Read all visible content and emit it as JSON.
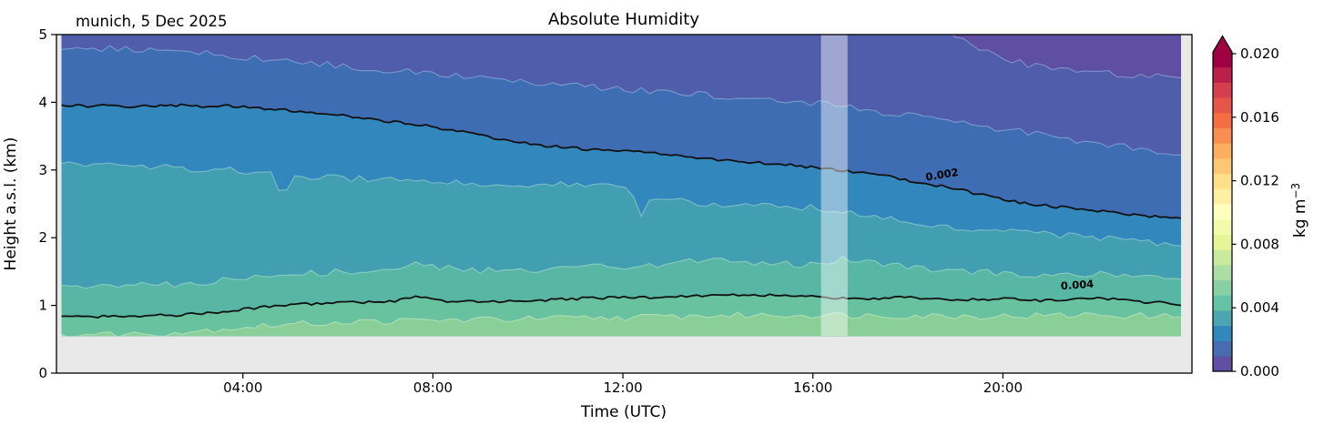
{
  "figure": {
    "title": "Absolute Humidity",
    "annotation": "munich, 5 Dec 2025"
  },
  "axes": {
    "xlabel": "Time (UTC)",
    "ylabel": "Height a.s.l. (km)",
    "x_ticks": [
      {
        "hour": 4,
        "label": "04:00"
      },
      {
        "hour": 8,
        "label": "08:00"
      },
      {
        "hour": 12,
        "label": "12:00"
      },
      {
        "hour": 16,
        "label": "16:00"
      },
      {
        "hour": 20,
        "label": "20:00"
      }
    ],
    "y_ticks": [
      {
        "km": 0,
        "label": "0"
      },
      {
        "km": 1,
        "label": "1"
      },
      {
        "km": 2,
        "label": "2"
      },
      {
        "km": 3,
        "label": "3"
      },
      {
        "km": 4,
        "label": "4"
      },
      {
        "km": 5,
        "label": "5"
      }
    ]
  },
  "colorbar": {
    "unit_base": "kg m",
    "unit_exp": "−3",
    "extend": "max",
    "ticks": [
      {
        "value": 0.0,
        "label": "0.000"
      },
      {
        "value": 0.004,
        "label": "0.004"
      },
      {
        "value": 0.008,
        "label": "0.008"
      },
      {
        "value": 0.012,
        "label": "0.012"
      },
      {
        "value": 0.016,
        "label": "0.016"
      },
      {
        "value": 0.02,
        "label": "0.020"
      }
    ],
    "colormap_name": "Spectral_r",
    "colormap_stops": [
      {
        "t": 0.0,
        "c": "#5e4fa2"
      },
      {
        "t": 0.1,
        "c": "#3288bd"
      },
      {
        "t": 0.2,
        "c": "#66c2a5"
      },
      {
        "t": 0.3,
        "c": "#abdda4"
      },
      {
        "t": 0.4,
        "c": "#e6f598"
      },
      {
        "t": 0.5,
        "c": "#ffffbf"
      },
      {
        "t": 0.6,
        "c": "#fee08b"
      },
      {
        "t": 0.7,
        "c": "#fdae61"
      },
      {
        "t": 0.8,
        "c": "#f46d43"
      },
      {
        "t": 0.9,
        "c": "#d53e4f"
      },
      {
        "t": 1.0,
        "c": "#9e0142"
      }
    ],
    "value_min": 0.0,
    "value_max": 0.02,
    "n_segments": 21
  },
  "chart_data": {
    "type": "filled_contour",
    "title": "Absolute Humidity",
    "xlabel": "Time (UTC)",
    "ylabel": "Height a.s.l. (km)",
    "x_range_hours": [
      0.18,
      23.75
    ],
    "y_range_km": [
      0,
      5
    ],
    "surface_km": 0.55,
    "units": "kg m^-3",
    "highlight_band_hours": [
      16.17,
      16.73
    ],
    "bands": [
      {
        "level_range": "0.0000-0.0005",
        "color": "#5e4fa2",
        "upper_boundary": null
      },
      {
        "level_range": "0.0005-0.0010",
        "color": "#4f5dab",
        "upper_boundary": [
          [
            0.18,
            5.1
          ],
          [
            18.7,
            5.1
          ],
          [
            19.2,
            4.9
          ],
          [
            19.6,
            4.76
          ],
          [
            20,
            4.66
          ],
          [
            20.5,
            4.56
          ],
          [
            21,
            4.49
          ],
          [
            21.5,
            4.45
          ],
          [
            22,
            4.43
          ],
          [
            22.7,
            4.41
          ],
          [
            23.75,
            4.36
          ]
        ]
      },
      {
        "level_range": "0.0010-0.0020",
        "color": "#3f6db4",
        "upper_boundary": [
          [
            0.18,
            4.78
          ],
          [
            1,
            4.8
          ],
          [
            2,
            4.77
          ],
          [
            3,
            4.73
          ],
          [
            4,
            4.67
          ],
          [
            5,
            4.6
          ],
          [
            6,
            4.54
          ],
          [
            7,
            4.48
          ],
          [
            8,
            4.42
          ],
          [
            9,
            4.37
          ],
          [
            10,
            4.31
          ],
          [
            11,
            4.25
          ],
          [
            12,
            4.19
          ],
          [
            13,
            4.14
          ],
          [
            14,
            4.09
          ],
          [
            15,
            4.04
          ],
          [
            16,
            3.99
          ],
          [
            17,
            3.9
          ],
          [
            18,
            3.8
          ],
          [
            19,
            3.7
          ],
          [
            20,
            3.6
          ],
          [
            21,
            3.5
          ],
          [
            22,
            3.4
          ],
          [
            23,
            3.3
          ],
          [
            23.75,
            3.22
          ]
        ]
      },
      {
        "level_range": "0.0020-0.0025",
        "color": "#3287bc",
        "upper_boundary": [
          [
            0.18,
            3.96
          ],
          [
            0.7,
            3.94
          ],
          [
            1.2,
            3.96
          ],
          [
            1.7,
            3.93
          ],
          [
            2.2,
            3.95
          ],
          [
            2.7,
            3.96
          ],
          [
            3.2,
            3.94
          ],
          [
            3.7,
            3.95
          ],
          [
            4.2,
            3.92
          ],
          [
            4.7,
            3.9
          ],
          [
            5.2,
            3.87
          ],
          [
            5.7,
            3.83
          ],
          [
            6.2,
            3.79
          ],
          [
            6.7,
            3.75
          ],
          [
            7.2,
            3.71
          ],
          [
            7.7,
            3.67
          ],
          [
            8.2,
            3.61
          ],
          [
            8.7,
            3.55
          ],
          [
            9.2,
            3.48
          ],
          [
            9.7,
            3.42
          ],
          [
            10.2,
            3.37
          ],
          [
            10.7,
            3.34
          ],
          [
            11.2,
            3.31
          ],
          [
            11.7,
            3.3
          ],
          [
            12.2,
            3.28
          ],
          [
            12.7,
            3.25
          ],
          [
            13.2,
            3.21
          ],
          [
            13.7,
            3.17
          ],
          [
            14.2,
            3.14
          ],
          [
            14.7,
            3.11
          ],
          [
            15.2,
            3.09
          ],
          [
            15.7,
            3.06
          ],
          [
            16.2,
            3.03
          ],
          [
            16.7,
            2.99
          ],
          [
            17.2,
            2.94
          ],
          [
            17.7,
            2.89
          ],
          [
            18.2,
            2.82
          ],
          [
            18.7,
            2.76
          ],
          [
            19.2,
            2.69
          ],
          [
            19.7,
            2.61
          ],
          [
            20.2,
            2.54
          ],
          [
            20.7,
            2.49
          ],
          [
            21.2,
            2.45
          ],
          [
            21.7,
            2.42
          ],
          [
            22.2,
            2.38
          ],
          [
            22.7,
            2.34
          ],
          [
            23.2,
            2.31
          ],
          [
            23.75,
            2.29
          ]
        ]
      },
      {
        "level_range": "0.0025-0.0030",
        "color": "#429fb1",
        "upper_boundary": [
          [
            0.18,
            3.1
          ],
          [
            0.7,
            3.06
          ],
          [
            1.2,
            3.07
          ],
          [
            1.7,
            3.04
          ],
          [
            2.2,
            3.05
          ],
          [
            2.7,
            3.02
          ],
          [
            3.2,
            3.0
          ],
          [
            3.7,
            3.0
          ],
          [
            4.2,
            2.98
          ],
          [
            4.6,
            2.96
          ],
          [
            4.85,
            2.62
          ],
          [
            5.1,
            2.92
          ],
          [
            5.5,
            2.9
          ],
          [
            6,
            2.88
          ],
          [
            6.5,
            2.87
          ],
          [
            7,
            2.85
          ],
          [
            7.5,
            2.87
          ],
          [
            8,
            2.84
          ],
          [
            8.5,
            2.82
          ],
          [
            9,
            2.8
          ],
          [
            9.5,
            2.78
          ],
          [
            10,
            2.78
          ],
          [
            10.5,
            2.76
          ],
          [
            11,
            2.82
          ],
          [
            11.5,
            2.78
          ],
          [
            12,
            2.72
          ],
          [
            12.2,
            2.65
          ],
          [
            12.4,
            2.35
          ],
          [
            12.6,
            2.6
          ],
          [
            13,
            2.56
          ],
          [
            13.5,
            2.52
          ],
          [
            14,
            2.5
          ],
          [
            14.5,
            2.48
          ],
          [
            15,
            2.46
          ],
          [
            15.5,
            2.47
          ],
          [
            16,
            2.44
          ],
          [
            16.5,
            2.4
          ],
          [
            17,
            2.32
          ],
          [
            17.5,
            2.28
          ],
          [
            18,
            2.22
          ],
          [
            18.5,
            2.18
          ],
          [
            19,
            2.15
          ],
          [
            19.5,
            2.12
          ],
          [
            20,
            2.1
          ],
          [
            20.5,
            2.08
          ],
          [
            21,
            2.05
          ],
          [
            21.5,
            2.02
          ],
          [
            22,
            2.0
          ],
          [
            22.5,
            1.96
          ],
          [
            23,
            1.93
          ],
          [
            23.75,
            1.88
          ]
        ]
      },
      {
        "level_range": "0.0030-0.0040",
        "color": "#57b6a4",
        "upper_boundary": [
          [
            0.18,
            1.3
          ],
          [
            1,
            1.28
          ],
          [
            2,
            1.3
          ],
          [
            3,
            1.33
          ],
          [
            4,
            1.4
          ],
          [
            5,
            1.46
          ],
          [
            6,
            1.5
          ],
          [
            7,
            1.53
          ],
          [
            7.7,
            1.62
          ],
          [
            8.1,
            1.56
          ],
          [
            9,
            1.51
          ],
          [
            10,
            1.53
          ],
          [
            11,
            1.56
          ],
          [
            12,
            1.58
          ],
          [
            13,
            1.61
          ],
          [
            13.6,
            1.68
          ],
          [
            14,
            1.66
          ],
          [
            15,
            1.63
          ],
          [
            16,
            1.6
          ],
          [
            16.6,
            1.7
          ],
          [
            17,
            1.64
          ],
          [
            18,
            1.56
          ],
          [
            19,
            1.52
          ],
          [
            20,
            1.47
          ],
          [
            21,
            1.45
          ],
          [
            22,
            1.46
          ],
          [
            23,
            1.42
          ],
          [
            23.75,
            1.39
          ]
        ]
      },
      {
        "level_range": "0.0040-0.0045",
        "color": "#68c2a0",
        "upper_boundary": [
          [
            0.18,
            0.84
          ],
          [
            0.7,
            0.83
          ],
          [
            1.2,
            0.84
          ],
          [
            1.7,
            0.83
          ],
          [
            2.2,
            0.85
          ],
          [
            2.7,
            0.86
          ],
          [
            3.2,
            0.88
          ],
          [
            3.7,
            0.92
          ],
          [
            4.2,
            0.96
          ],
          [
            4.7,
            1.0
          ],
          [
            5.2,
            1.02
          ],
          [
            5.7,
            1.03
          ],
          [
            6.2,
            1.04
          ],
          [
            6.7,
            1.05
          ],
          [
            7.2,
            1.06
          ],
          [
            7.6,
            1.13
          ],
          [
            7.9,
            1.1
          ],
          [
            8.4,
            1.06
          ],
          [
            9,
            1.05
          ],
          [
            9.5,
            1.06
          ],
          [
            10,
            1.07
          ],
          [
            10.5,
            1.08
          ],
          [
            11,
            1.1
          ],
          [
            11.5,
            1.11
          ],
          [
            12,
            1.12
          ],
          [
            12.5,
            1.12
          ],
          [
            13,
            1.13
          ],
          [
            13.5,
            1.14
          ],
          [
            14,
            1.17
          ],
          [
            14.5,
            1.16
          ],
          [
            15,
            1.15
          ],
          [
            15.5,
            1.14
          ],
          [
            16,
            1.13
          ],
          [
            16.5,
            1.11
          ],
          [
            17,
            1.1
          ],
          [
            17.5,
            1.11
          ],
          [
            18,
            1.12
          ],
          [
            18.5,
            1.1
          ],
          [
            19,
            1.08
          ],
          [
            19.5,
            1.09
          ],
          [
            20,
            1.1
          ],
          [
            20.5,
            1.08
          ],
          [
            21,
            1.07
          ],
          [
            21.5,
            1.09
          ],
          [
            22,
            1.11
          ],
          [
            22.5,
            1.08
          ],
          [
            23,
            1.04
          ],
          [
            23.4,
            1.06
          ],
          [
            23.75,
            1.0
          ]
        ]
      },
      {
        "level_range": "0.0045+",
        "color": "#8acf97",
        "upper_boundary": [
          [
            0.18,
            0.57
          ],
          [
            2,
            0.58
          ],
          [
            3,
            0.62
          ],
          [
            4,
            0.68
          ],
          [
            5,
            0.72
          ],
          [
            6,
            0.75
          ],
          [
            8,
            0.78
          ],
          [
            10,
            0.8
          ],
          [
            12,
            0.82
          ],
          [
            14,
            0.85
          ],
          [
            16,
            0.86
          ],
          [
            18,
            0.85
          ],
          [
            20,
            0.84
          ],
          [
            22,
            0.86
          ],
          [
            23.75,
            0.83
          ]
        ]
      }
    ],
    "contour_lines": [
      {
        "level": "0.002",
        "band_index": 3,
        "label": {
          "text": "0.002",
          "hour": 18.73,
          "km": 2.88,
          "rot": -9
        }
      },
      {
        "level": "0.004",
        "band_index": 6,
        "label": {
          "text": "0.004",
          "hour": 21.57,
          "km": 1.25,
          "rot": -4
        }
      }
    ]
  }
}
